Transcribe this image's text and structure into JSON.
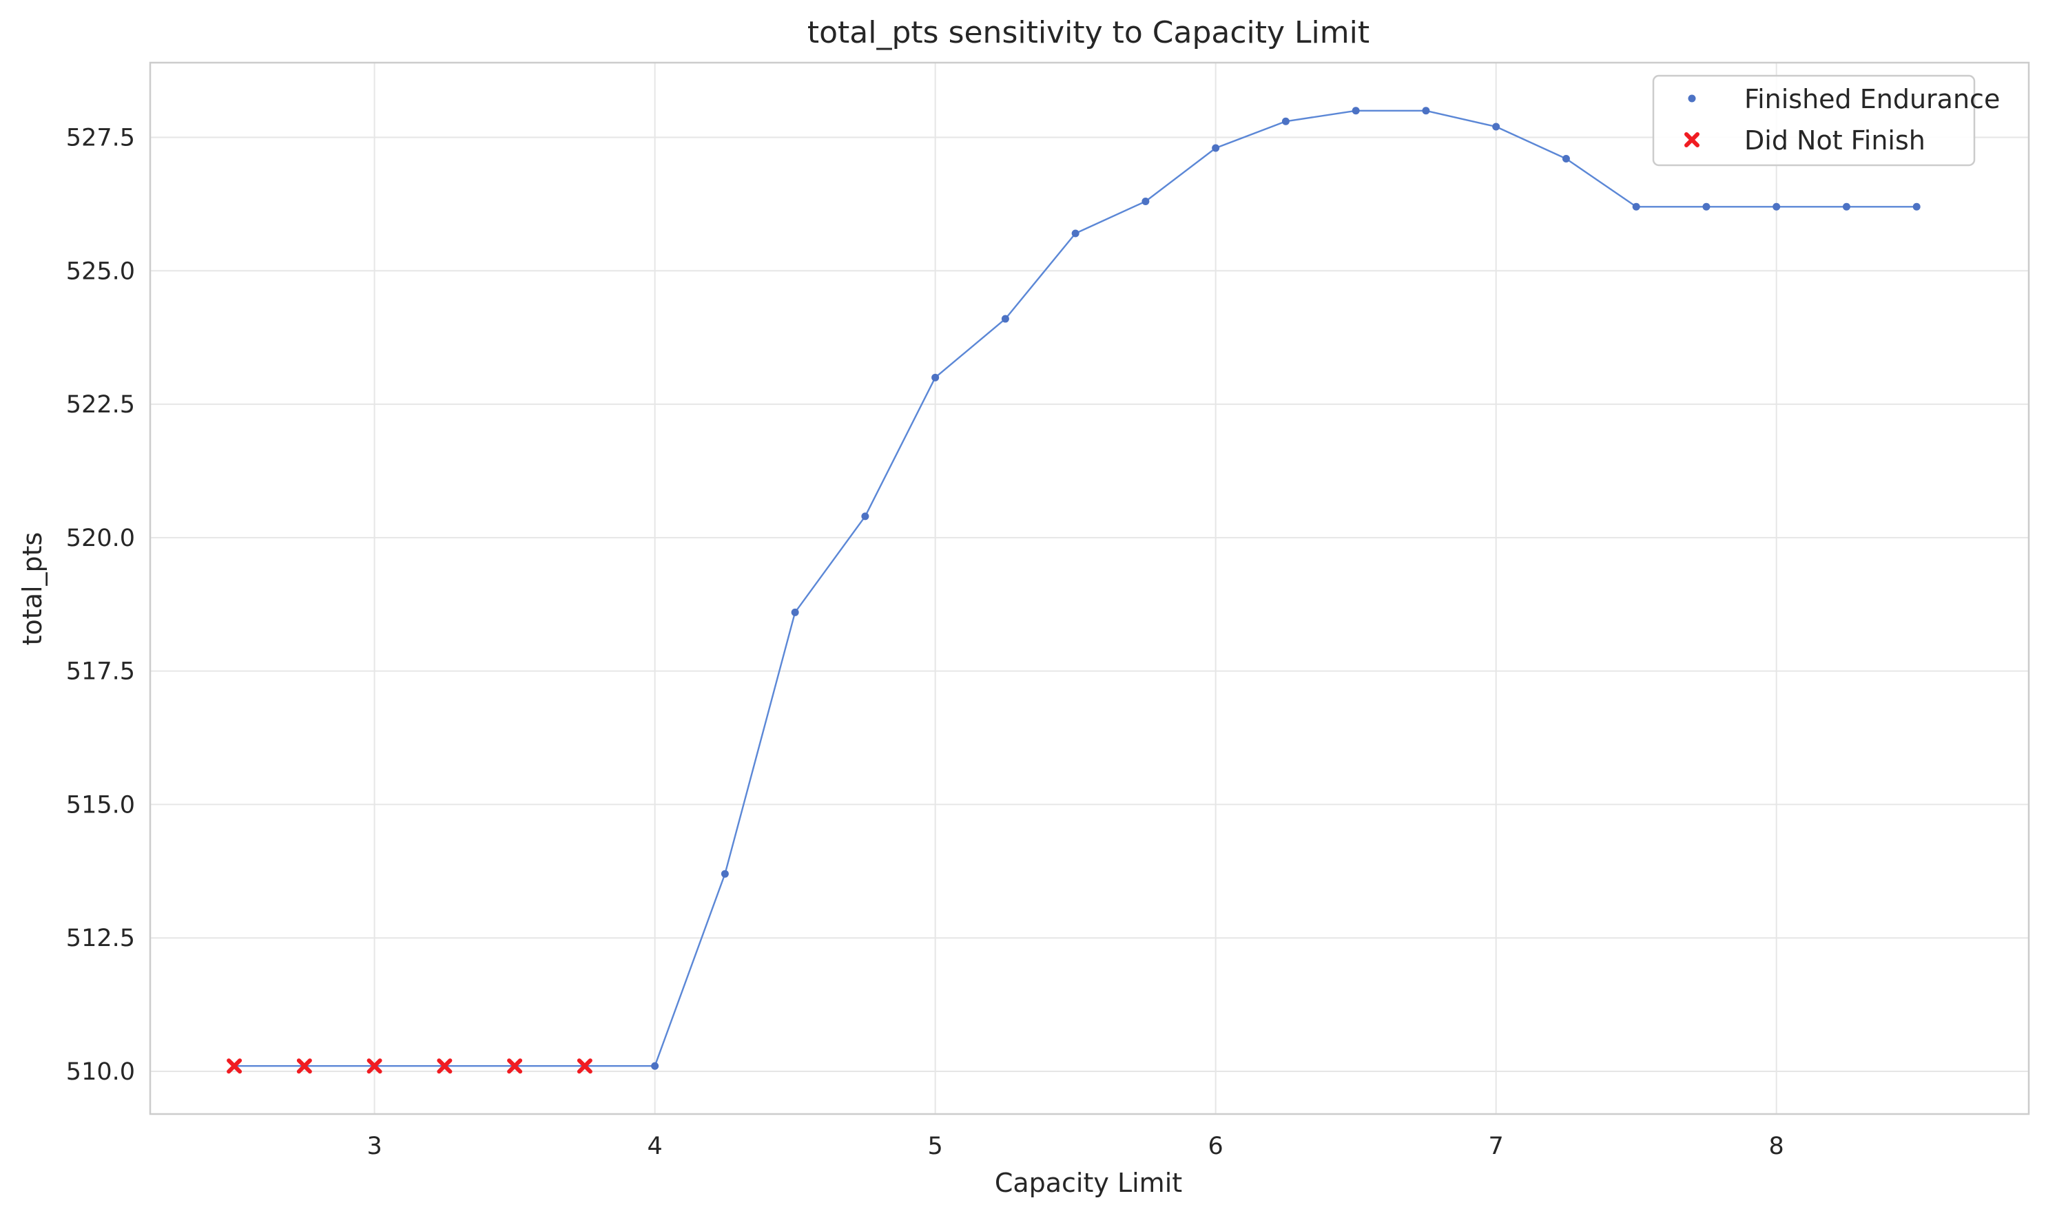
{
  "chart_data": {
    "type": "line",
    "title": "total_pts sensitivity to Capacity Limit",
    "xlabel": "Capacity Limit",
    "ylabel": "total_pts",
    "xlim": [
      2.2,
      8.9
    ],
    "ylim": [
      509.2,
      528.9
    ],
    "xticks": [
      3,
      4,
      5,
      6,
      7,
      8
    ],
    "yticks": [
      510.0,
      512.5,
      515.0,
      517.5,
      520.0,
      522.5,
      525.0,
      527.5
    ],
    "xtick_labels": [
      "3",
      "4",
      "5",
      "6",
      "7",
      "8"
    ],
    "ytick_labels": [
      "510.0",
      "512.5",
      "515.0",
      "517.5",
      "520.0",
      "522.5",
      "525.0",
      "527.5"
    ],
    "grid": true,
    "legend_position": "top-right",
    "line_color": "#5b87d6",
    "x": [
      2.5,
      2.75,
      3.0,
      3.25,
      3.5,
      3.75,
      4.0,
      4.25,
      4.5,
      4.75,
      5.0,
      5.25,
      5.5,
      5.75,
      6.0,
      6.25,
      6.5,
      6.75,
      7.0,
      7.25,
      7.5,
      7.75,
      8.0,
      8.25,
      8.5
    ],
    "y": [
      510.1,
      510.1,
      510.1,
      510.1,
      510.1,
      510.1,
      510.1,
      513.7,
      518.6,
      520.4,
      523.0,
      524.1,
      525.7,
      526.3,
      527.3,
      527.8,
      528.0,
      528.0,
      527.7,
      527.1,
      526.2,
      526.2,
      526.2,
      526.2,
      526.2
    ],
    "series": [
      {
        "name": "Finished Endurance",
        "marker": "dot",
        "color": "#4c72c4",
        "x": [
          4.0,
          4.25,
          4.5,
          4.75,
          5.0,
          5.25,
          5.5,
          5.75,
          6.0,
          6.25,
          6.5,
          6.75,
          7.0,
          7.25,
          7.5,
          7.75,
          8.0,
          8.25,
          8.5
        ],
        "y": [
          510.1,
          513.7,
          518.6,
          520.4,
          523.0,
          524.1,
          525.7,
          526.3,
          527.3,
          527.8,
          528.0,
          528.0,
          527.7,
          527.1,
          526.2,
          526.2,
          526.2,
          526.2,
          526.2
        ]
      },
      {
        "name": "Did Not Finish",
        "marker": "x",
        "color": "#f01c22",
        "x": [
          2.5,
          2.75,
          3.0,
          3.25,
          3.5,
          3.75
        ],
        "y": [
          510.1,
          510.1,
          510.1,
          510.1,
          510.1,
          510.1
        ]
      }
    ]
  }
}
